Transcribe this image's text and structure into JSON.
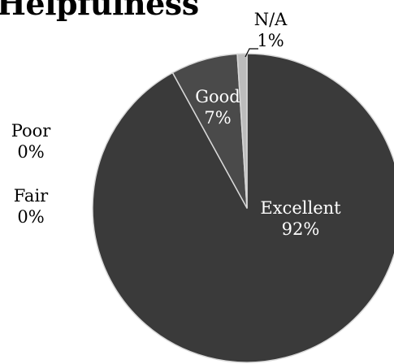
{
  "chart_data": {
    "type": "pie",
    "title": "Helpfulness",
    "start_angle_deg": 0,
    "direction": "clockwise",
    "legend": "none",
    "slices": [
      {
        "label": "Excellent",
        "value": 92,
        "value_label": "92%",
        "color": "#3a3a3a"
      },
      {
        "label": "Good",
        "value": 7,
        "value_label": "7%",
        "color": "#4a4a4a"
      },
      {
        "label": "N/A",
        "value": 1,
        "value_label": "1%",
        "color": "#bcbcbc"
      },
      {
        "label": "Poor",
        "value": 0,
        "value_label": "0%",
        "color": "#3a3a3a"
      },
      {
        "label": "Fair",
        "value": 0,
        "value_label": "0%",
        "color": "#3a3a3a"
      }
    ]
  }
}
